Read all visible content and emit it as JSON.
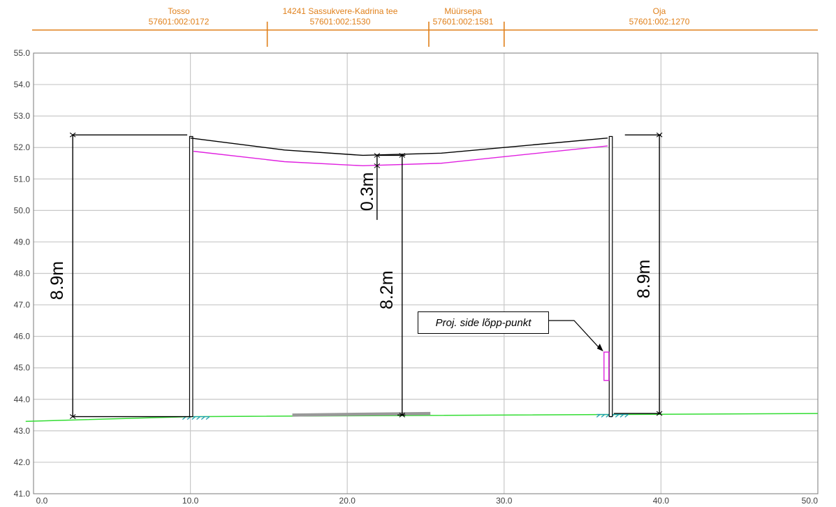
{
  "chart_data": {
    "type": "line",
    "xlim": [
      0,
      50
    ],
    "ylim": [
      41,
      55
    ],
    "x_ticks": [
      "0.0",
      "10.0",
      "20.0",
      "30.0",
      "40.0",
      "50.0"
    ],
    "y_ticks": [
      "41.0",
      "42.0",
      "43.0",
      "44.0",
      "45.0",
      "46.0",
      "47.0",
      "48.0",
      "49.0",
      "50.0",
      "51.0",
      "52.0",
      "53.0",
      "54.0",
      "55.0"
    ],
    "parcels": [
      {
        "name": "Tosso",
        "id": "57601:002:0172"
      },
      {
        "name": "14241 Sassukvere-Kadrina tee",
        "id": "57601:002:1530"
      },
      {
        "name": "Müürsepa",
        "id": "57601:002:1581"
      },
      {
        "name": "Oja",
        "id": "57601:002:1270"
      }
    ],
    "parcel_boundaries_x": [
      14.9,
      25.2,
      30.0
    ],
    "ground_line": {
      "x": [
        -0.5,
        10.0,
        50.0
      ],
      "y": [
        43.3,
        43.45,
        43.55
      ]
    },
    "conductor_line": {
      "x": [
        10.0,
        16.0,
        21.0,
        26.0,
        36.6
      ],
      "y": [
        52.3,
        51.92,
        51.75,
        51.82,
        52.3
      ]
    },
    "projected_line": {
      "x": [
        10.2,
        16.0,
        21.0,
        26.0,
        36.6
      ],
      "y": [
        51.88,
        51.55,
        51.42,
        51.5,
        52.05
      ]
    },
    "road_segment": {
      "x": [
        16.5,
        25.3
      ],
      "y": [
        43.5,
        43.55
      ]
    },
    "dimensions": [
      {
        "label": "8.9m",
        "x": 2.5,
        "y_from": 43.45,
        "y_to": 52.4
      },
      {
        "label": "8.2m",
        "x": 23.5,
        "y_from": 43.5,
        "y_to": 51.75
      },
      {
        "label": "0.3m",
        "x": 21.9,
        "y_from": 51.42,
        "y_to": 51.75
      },
      {
        "label": "8.9m",
        "x": 39.9,
        "y_from": 43.55,
        "y_to": 52.4
      }
    ],
    "callout": {
      "label": "Proj. side lõpp-punkt",
      "x": 36.5,
      "y_from": 44.6,
      "y_to": 45.5
    },
    "colors": {
      "ground": "#33dd33",
      "conductor": "#000000",
      "projected": "#e020e0",
      "parcel": "#e0801b",
      "road": "#999999",
      "hatch": "#20a0b0"
    }
  }
}
